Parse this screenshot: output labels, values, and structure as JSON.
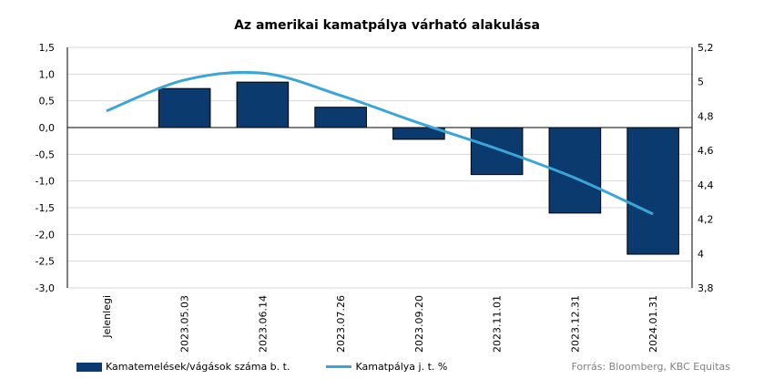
{
  "title": "Az amerikai kamatpálya várható alakulása",
  "source": "Forrás: Bloomberg, KBC Equitas",
  "colors": {
    "bars": "#0b3a6e",
    "line": "#3aa6d8",
    "grid": "#d9d9d9"
  },
  "chart_data": {
    "type": "bar",
    "title": "Az amerikai kamatpálya várható alakulása",
    "categories": [
      "Jelenlegi",
      "2023.05.03",
      "2023.06.14",
      "2023.07.26",
      "2023.09.20",
      "2023.11.01",
      "2023.12.31",
      "2024.01.31"
    ],
    "series": [
      {
        "name": "Kamatemelések/vágások száma b. t.",
        "type": "bar",
        "axis": "left",
        "values": [
          0,
          0.73,
          0.85,
          0.38,
          -0.22,
          -0.88,
          -1.6,
          -2.37
        ]
      },
      {
        "name": "Kamatpálya j. t. %",
        "type": "line",
        "axis": "right",
        "values": [
          4.83,
          5.01,
          5.05,
          4.92,
          4.76,
          4.61,
          4.44,
          4.23
        ]
      }
    ],
    "ylim_left": [
      -3.0,
      1.5
    ],
    "ylim_right": [
      3.8,
      5.2
    ],
    "yticks_left": [
      "1,5",
      "1,0",
      "0,5",
      "0,0",
      "-0,5",
      "-1,0",
      "-1,5",
      "-2,0",
      "-2,5",
      "-3,0"
    ],
    "yticks_right": [
      "5,2",
      "5",
      "4,8",
      "4,6",
      "4,4",
      "4,2",
      "4",
      "3,8"
    ],
    "grid": true,
    "legend": "bottom"
  }
}
